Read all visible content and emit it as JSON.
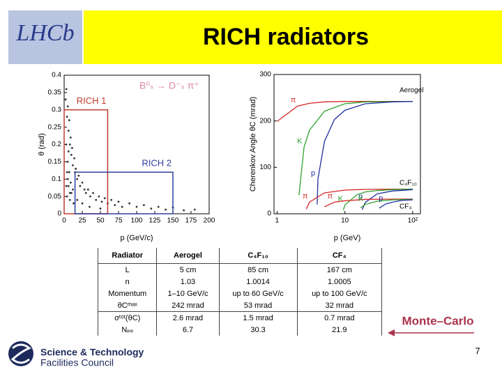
{
  "header": {
    "logo": "LHCb",
    "title": "RICH radiators"
  },
  "chart_data": [
    {
      "type": "scatter",
      "annotation": "B⁰ₛ → D⁻ₛ π⁺",
      "xlabel": "p (GeV/c)",
      "ylabel": "θ (rad)",
      "xlim": [
        0,
        200
      ],
      "ylim": [
        0,
        0.4
      ],
      "xticks": [
        0,
        25,
        50,
        75,
        100,
        125,
        150,
        175,
        200
      ],
      "yticks": [
        0,
        0.05,
        0.1,
        0.15,
        0.2,
        0.25,
        0.3,
        0.35,
        0.4
      ],
      "color": "#333333",
      "x": [
        2,
        3,
        4,
        5,
        6,
        7,
        8,
        9,
        10,
        11,
        12,
        14,
        15,
        16,
        18,
        20,
        22,
        25,
        28,
        30,
        33,
        36,
        40,
        44,
        48,
        52,
        56,
        60,
        65,
        70,
        75,
        80,
        90,
        100,
        110,
        120,
        130,
        140,
        150,
        165,
        180,
        4,
        6,
        8,
        10,
        13,
        5,
        7,
        9,
        12,
        18,
        25,
        35,
        50,
        3,
        4,
        6,
        3,
        5,
        8
      ],
      "values": [
        0.33,
        0.36,
        0.28,
        0.31,
        0.24,
        0.27,
        0.2,
        0.22,
        0.17,
        0.19,
        0.14,
        0.16,
        0.12,
        0.13,
        0.1,
        0.11,
        0.08,
        0.09,
        0.07,
        0.06,
        0.07,
        0.05,
        0.06,
        0.04,
        0.05,
        0.035,
        0.045,
        0.03,
        0.04,
        0.025,
        0.035,
        0.02,
        0.03,
        0.02,
        0.025,
        0.015,
        0.02,
        0.012,
        0.018,
        0.01,
        0.012,
        0.05,
        0.08,
        0.04,
        0.06,
        0.03,
        0.15,
        0.12,
        0.09,
        0.07,
        0.04,
        0.03,
        0.02,
        0.015,
        0.2,
        0.12,
        0.18,
        0.08,
        0.1,
        0.06
      ],
      "regions": [
        {
          "label": "RICH 1",
          "color": "#c0392b",
          "xlim": [
            0,
            60
          ],
          "ylim": [
            0,
            0.3
          ]
        },
        {
          "label": "RICH 2",
          "color": "#2c3e9e",
          "xlim": [
            15,
            150
          ],
          "ylim": [
            0,
            0.12
          ]
        }
      ]
    },
    {
      "type": "line",
      "xlabel": "p (GeV)",
      "ylabel": "Cherenkov Angle θC (mrad)",
      "log_x": true,
      "xlim": [
        0.9,
        130
      ],
      "ylim": [
        0,
        300
      ],
      "xticks": [
        1,
        10,
        {
          "value": 100,
          "label": "10²"
        }
      ],
      "yticks": [
        0,
        100,
        200,
        300
      ],
      "radiators": [
        "Aerogel",
        "C₄F₁₀",
        "CF₄"
      ],
      "series": [
        {
          "name": "π",
          "color": "#d62728",
          "x": [
            1,
            2,
            3,
            5,
            10,
            20,
            100
          ],
          "values": [
            199,
            232,
            238,
            241,
            242,
            242,
            242
          ]
        },
        {
          "name": "K",
          "color": "#2ca02c",
          "x": [
            2.1,
            2.5,
            3,
            5,
            10,
            20,
            100
          ],
          "values": [
            40,
            144,
            180,
            221,
            237,
            241,
            242
          ]
        },
        {
          "name": "p",
          "color": "#1f2f9f",
          "x": [
            3.9,
            4,
            5,
            7,
            10,
            20,
            50,
            100
          ],
          "values": [
            20,
            75,
            156,
            203,
            223,
            237,
            241,
            242
          ]
        },
        {
          "name": "π",
          "color": "#d62728",
          "x": [
            2.7,
            3,
            5,
            10,
            20,
            50,
            100
          ],
          "values": [
            10,
            25,
            45,
            51,
            52.5,
            53,
            53
          ]
        },
        {
          "name": "K",
          "color": "#2ca02c",
          "x": [
            9.5,
            10,
            15,
            20,
            30,
            50,
            100
          ],
          "values": [
            8,
            19,
            41,
            47,
            50,
            52,
            53
          ]
        },
        {
          "name": "p",
          "color": "#1f2f9f",
          "x": [
            18,
            20,
            30,
            50,
            100
          ],
          "values": [
            9,
            24.5,
            43,
            49,
            52
          ]
        },
        {
          "name": "π",
          "color": "#d62728",
          "x": [
            5,
            7,
            10,
            20,
            50,
            100
          ],
          "values": [
            15,
            25,
            28,
            31,
            31.5,
            31.6
          ]
        },
        {
          "name": "K",
          "color": "#2ca02c",
          "x": [
            17,
            20,
            30,
            50,
            100
          ],
          "values": [
            13,
            20,
            27,
            30,
            31
          ]
        },
        {
          "name": "p",
          "color": "#1f2f9f",
          "x": [
            32,
            40,
            50,
            70,
            100
          ],
          "values": [
            12,
            21,
            25,
            29,
            30
          ]
        }
      ]
    }
  ],
  "table": {
    "header": [
      "Radiator",
      "Aerogel",
      "C₄F₁₀",
      "CF₄"
    ],
    "rows": [
      [
        "L",
        "5 cm",
        "85 cm",
        "167 cm"
      ],
      [
        "n",
        "1.03",
        "1.0014",
        "1.0005"
      ],
      [
        "Momentum",
        "1–10 GeV/c",
        "up to 60 GeV/c",
        "up to 100 GeV/c"
      ],
      [
        "θCᵐᵃˣ",
        "242 mrad",
        "53 mrad",
        "32 mrad"
      ],
      [
        "σᵗᵒᵗ(θC)",
        "2.6 mrad",
        "1.5 mrad",
        "0.7 mrad"
      ],
      [
        "Nₚₑ",
        "6.7",
        "30.3",
        "21.9"
      ]
    ]
  },
  "annotation": "Monte–Carlo",
  "footer": {
    "org_line1": "Science & Technology",
    "org_line2": "Facilities Council",
    "page": "7"
  }
}
